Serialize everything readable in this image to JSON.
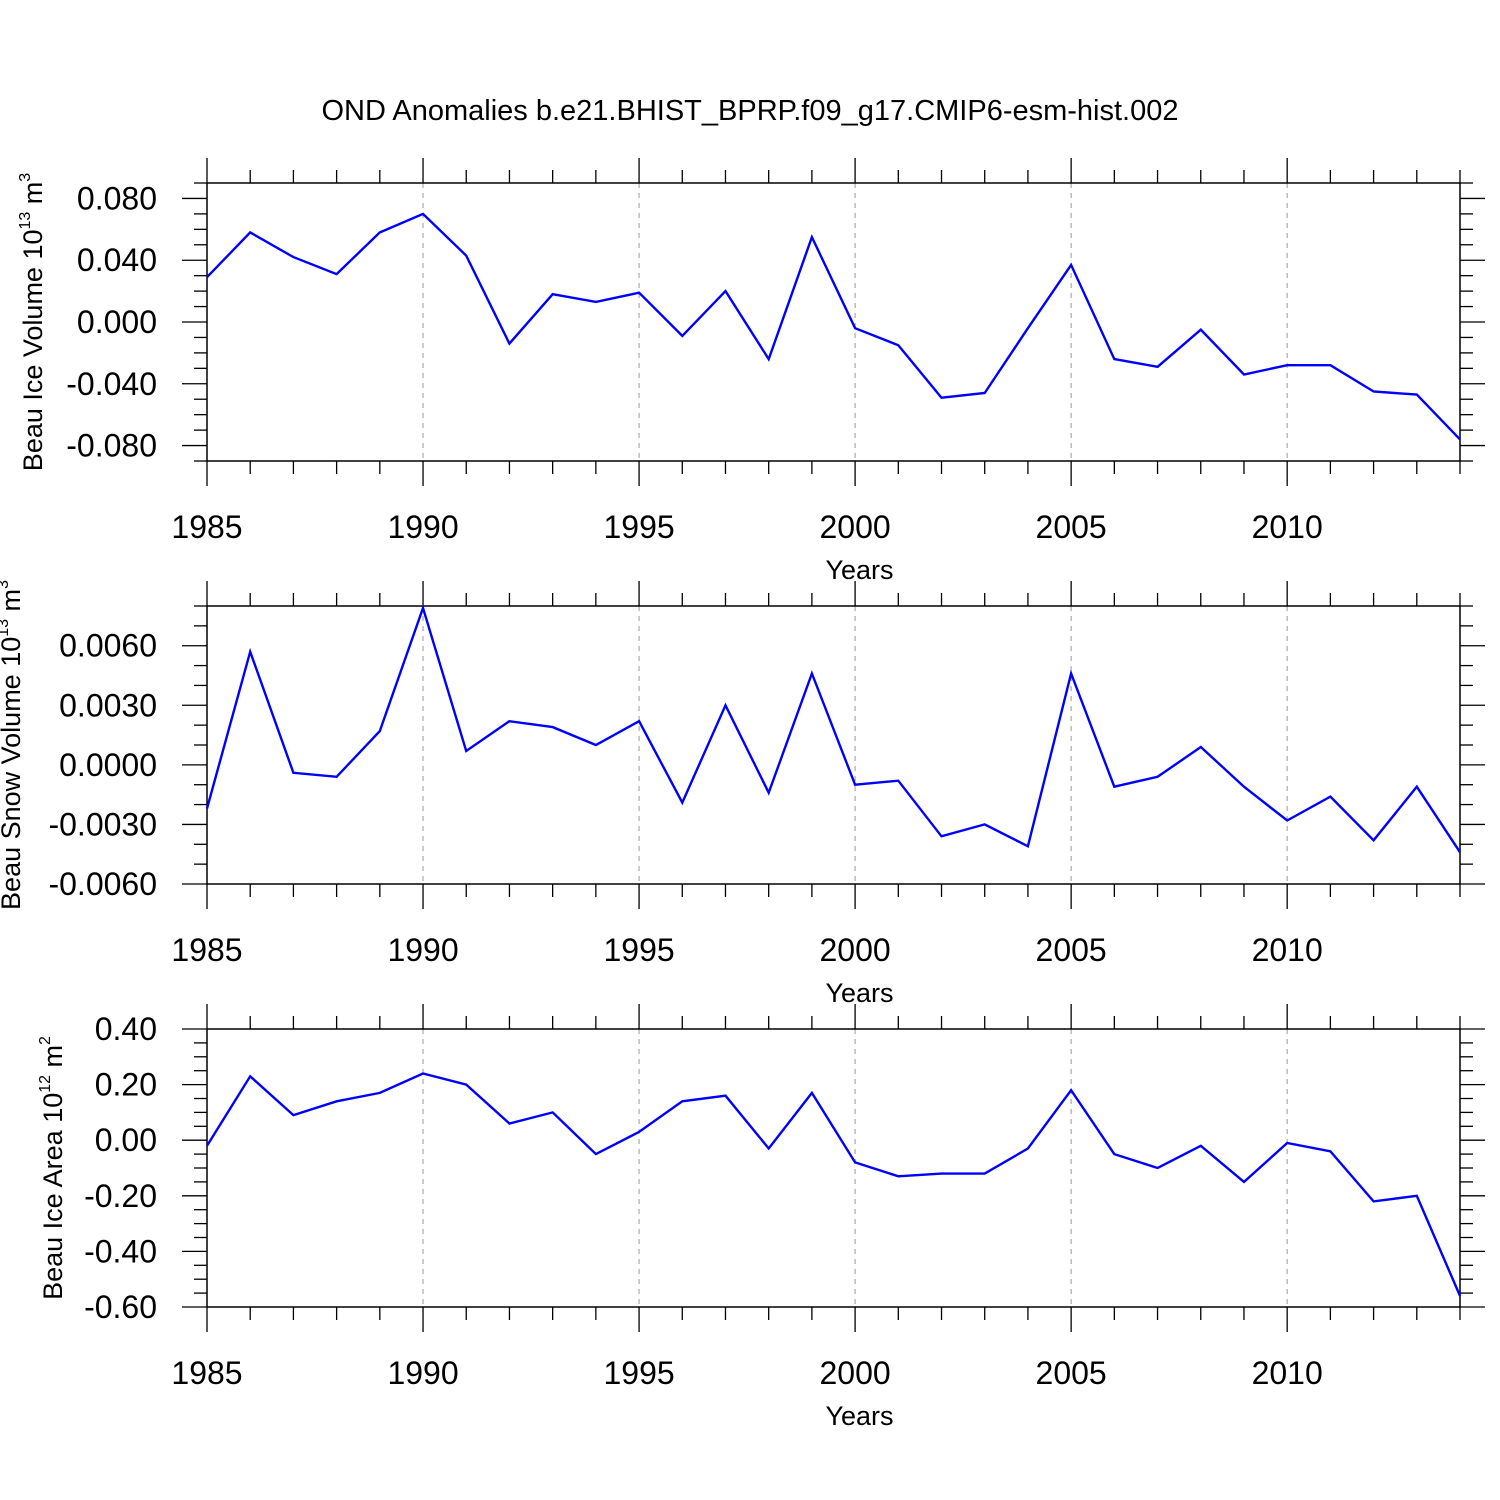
{
  "title": "OND Anomalies b.e21.BHIST_BPRP.f09_g17.CMIP6-esm-hist.002",
  "colors": {
    "line": "#0000ff",
    "grid": "#aaaaaa",
    "axis": "#000000"
  },
  "chart_data": [
    {
      "type": "line",
      "title": "",
      "xlabel": "Years",
      "ylabel": {
        "main": "Beau Ice Volume 10",
        "exp": "13",
        "unit": " m",
        "unit_exp": "3"
      },
      "xlim": [
        1985,
        2014
      ],
      "ylim": [
        -0.09,
        0.09
      ],
      "x_ticks": [
        1985,
        1990,
        1995,
        2000,
        2005,
        2010
      ],
      "x_tick_labels": [
        "1985",
        "1990",
        "1995",
        "2000",
        "2005",
        "2010"
      ],
      "y_ticks": [
        -0.08,
        -0.04,
        0.0,
        0.04,
        0.08
      ],
      "y_tick_labels": [
        "-0.080",
        "-0.040",
        "0.000",
        "0.040",
        "0.080"
      ],
      "y_minor_step": 0.01,
      "vgrid_x": [
        1990,
        1995,
        2000,
        2005,
        2010
      ],
      "series": [
        {
          "x": [
            1985,
            1986,
            1987,
            1988,
            1989,
            1990,
            1991,
            1992,
            1993,
            1994,
            1995,
            1996,
            1997,
            1998,
            1999,
            2000,
            2001,
            2002,
            2003,
            2004,
            2005,
            2006,
            2007,
            2008,
            2009,
            2010,
            2011,
            2012,
            2013,
            2014
          ],
          "values": [
            0.029,
            0.058,
            0.042,
            0.031,
            0.058,
            0.07,
            0.043,
            -0.014,
            0.018,
            0.013,
            0.019,
            -0.009,
            0.02,
            -0.024,
            0.055,
            -0.004,
            -0.015,
            -0.049,
            -0.046,
            -0.004,
            0.037,
            -0.024,
            -0.029,
            -0.005,
            -0.034,
            -0.028,
            -0.028,
            -0.045,
            -0.047,
            -0.076
          ]
        }
      ]
    },
    {
      "type": "line",
      "title": "",
      "xlabel": "Years",
      "ylabel": {
        "main": "Beau Snow Volume 10",
        "exp": "13",
        "unit": " m",
        "unit_exp": "3"
      },
      "xlim": [
        1985,
        2014
      ],
      "ylim": [
        -0.006,
        0.008
      ],
      "x_ticks": [
        1985,
        1990,
        1995,
        2000,
        2005,
        2010
      ],
      "x_tick_labels": [
        "1985",
        "1990",
        "1995",
        "2000",
        "2005",
        "2010"
      ],
      "y_ticks": [
        -0.006,
        -0.003,
        0.0,
        0.003,
        0.006
      ],
      "y_tick_labels": [
        "-0.0060",
        "-0.0030",
        "0.0000",
        "0.0030",
        "0.0060"
      ],
      "y_minor_step": 0.001,
      "vgrid_x": [
        1990,
        1995,
        2000,
        2005,
        2010
      ],
      "series": [
        {
          "x": [
            1985,
            1986,
            1987,
            1988,
            1989,
            1990,
            1991,
            1992,
            1993,
            1994,
            1995,
            1996,
            1997,
            1998,
            1999,
            2000,
            2001,
            2002,
            2003,
            2004,
            2005,
            2006,
            2007,
            2008,
            2009,
            2010,
            2011,
            2012,
            2013,
            2014
          ],
          "values": [
            -0.0022,
            0.0057,
            -0.0004,
            -0.0006,
            0.0017,
            0.0079,
            0.0007,
            0.0022,
            0.0019,
            0.001,
            0.0022,
            -0.0019,
            0.003,
            -0.0014,
            0.0046,
            -0.001,
            -0.0008,
            -0.0036,
            -0.003,
            -0.0041,
            0.0046,
            -0.0011,
            -0.0006,
            0.0009,
            -0.0011,
            -0.0028,
            -0.0016,
            -0.0038,
            -0.0011,
            -0.0044
          ]
        }
      ]
    },
    {
      "type": "line",
      "title": "",
      "xlabel": "Years",
      "ylabel": {
        "main": "Beau Ice Area 10",
        "exp": "12",
        "unit": " m",
        "unit_exp": "2"
      },
      "xlim": [
        1985,
        2014
      ],
      "ylim": [
        -0.6,
        0.4
      ],
      "x_ticks": [
        1985,
        1990,
        1995,
        2000,
        2005,
        2010
      ],
      "x_tick_labels": [
        "1985",
        "1990",
        "1995",
        "2000",
        "2005",
        "2010"
      ],
      "y_ticks": [
        -0.6,
        -0.4,
        -0.2,
        0.0,
        0.2,
        0.4
      ],
      "y_tick_labels": [
        "-0.60",
        "-0.40",
        "-0.20",
        "0.00",
        "0.20",
        "0.40"
      ],
      "y_minor_step": 0.05,
      "vgrid_x": [
        1990,
        1995,
        2000,
        2005,
        2010
      ],
      "series": [
        {
          "x": [
            1985,
            1986,
            1987,
            1988,
            1989,
            1990,
            1991,
            1992,
            1993,
            1994,
            1995,
            1996,
            1997,
            1998,
            1999,
            2000,
            2001,
            2002,
            2003,
            2004,
            2005,
            2006,
            2007,
            2008,
            2009,
            2010,
            2011,
            2012,
            2013,
            2014
          ],
          "values": [
            -0.02,
            0.23,
            0.09,
            0.14,
            0.17,
            0.24,
            0.2,
            0.06,
            0.1,
            -0.05,
            0.03,
            0.14,
            0.16,
            -0.03,
            0.17,
            -0.08,
            -0.13,
            -0.12,
            -0.12,
            -0.03,
            0.18,
            -0.05,
            -0.1,
            -0.02,
            -0.15,
            -0.01,
            -0.04,
            -0.22,
            -0.2,
            -0.56
          ]
        }
      ]
    }
  ]
}
